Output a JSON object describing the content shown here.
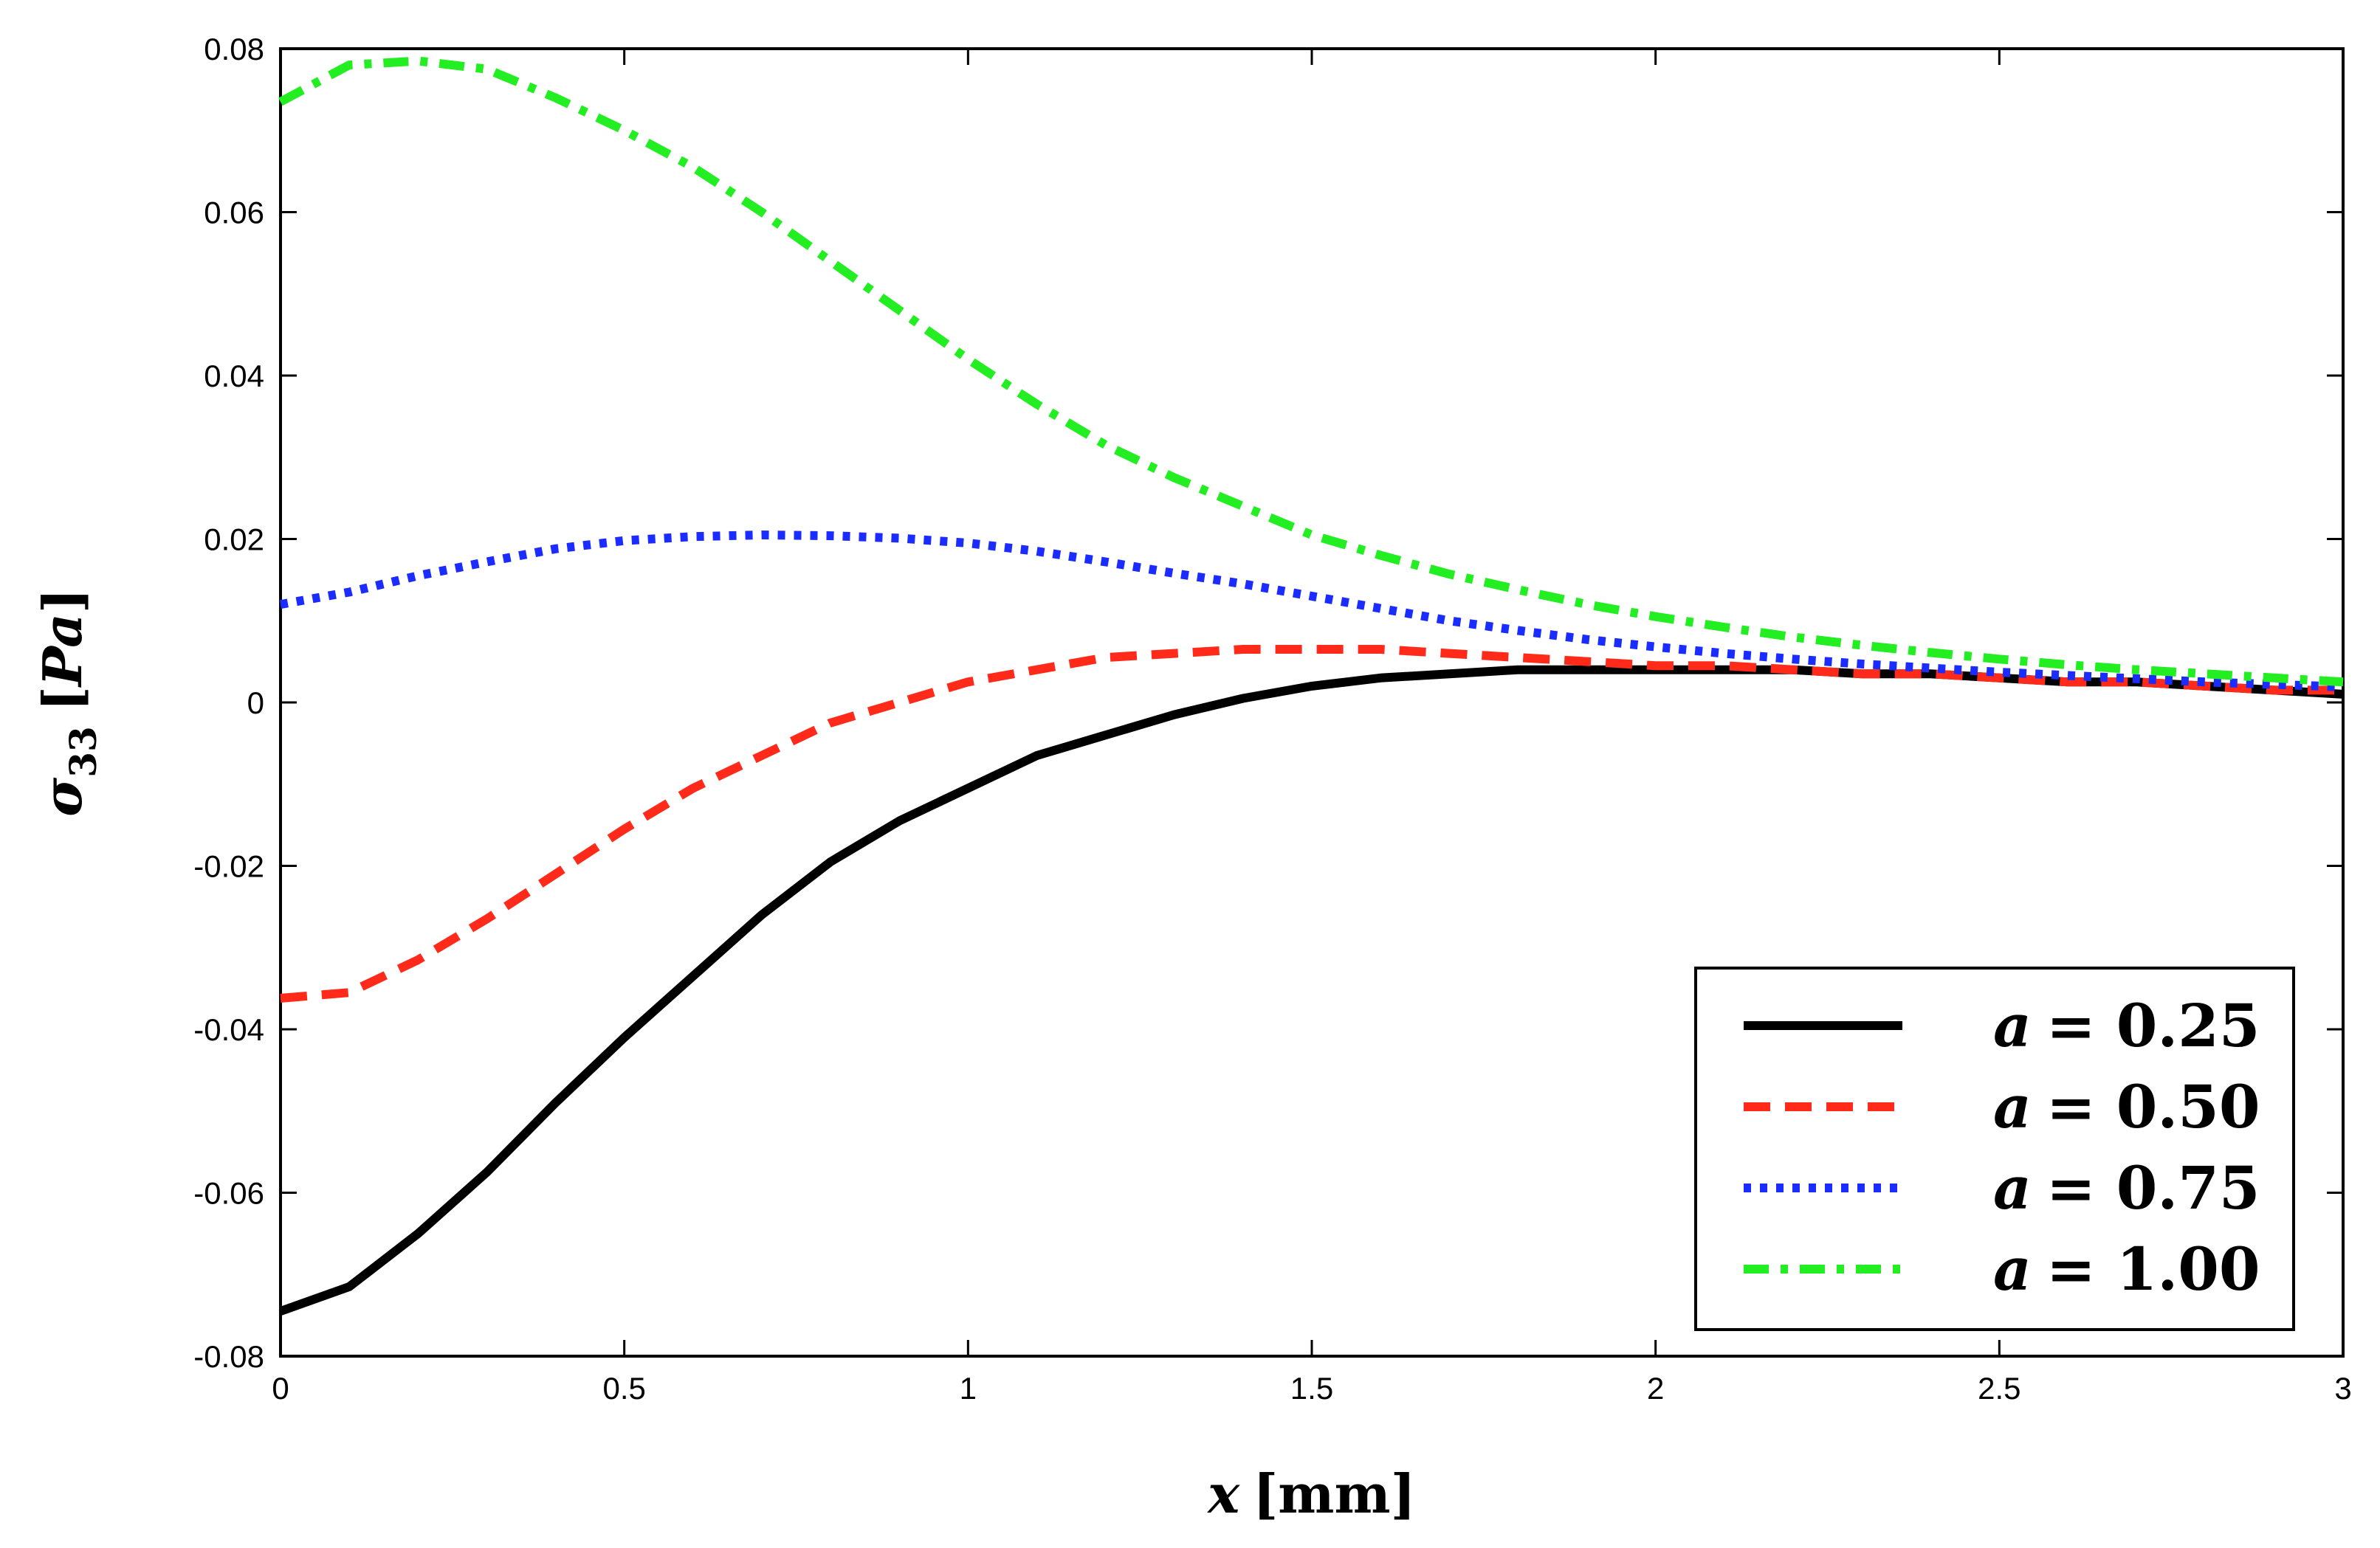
{
  "chart_data": {
    "type": "line",
    "title": "",
    "xlabel": {
      "var": "x",
      "unit": "[mm]"
    },
    "ylabel": {
      "var": "σ",
      "sub": "33",
      "unit": "[Pa]"
    },
    "xlim": [
      0,
      3
    ],
    "ylim": [
      -0.08,
      0.08
    ],
    "x_ticks": [
      0,
      0.5,
      1,
      1.5,
      2,
      2.5,
      3
    ],
    "x_tick_labels": [
      "0",
      "0.5",
      "1",
      "1.5",
      "2",
      "2.5",
      "3"
    ],
    "y_ticks": [
      0.08,
      0.06,
      0.04,
      0.02,
      0,
      -0.02,
      -0.04,
      -0.06,
      -0.08
    ],
    "y_tick_labels": [
      "0.08",
      "0.06",
      "0.04",
      "0.02",
      "0",
      "-0.02",
      "-0.04",
      "-0.06",
      "-0.08"
    ],
    "grid": false,
    "legend_position": "bottom-right",
    "x": [
      0,
      0.1,
      0.2,
      0.3,
      0.4,
      0.5,
      0.6,
      0.7,
      0.8,
      0.9,
      1.0,
      1.1,
      1.2,
      1.3,
      1.4,
      1.5,
      1.6,
      1.7,
      1.8,
      1.9,
      2.0,
      2.1,
      2.2,
      2.3,
      2.4,
      2.5,
      2.6,
      2.7,
      2.8,
      2.9,
      3.0
    ],
    "series": [
      {
        "name": "a = 0.25",
        "var": "a",
        "eq": "= 0.25",
        "color": "#000000",
        "style": "solid",
        "values": [
          -0.0745,
          -0.0715,
          -0.065,
          -0.0575,
          -0.049,
          -0.041,
          -0.0335,
          -0.026,
          -0.0195,
          -0.0145,
          -0.0105,
          -0.0065,
          -0.004,
          -0.0015,
          0.0005,
          0.002,
          0.003,
          0.0035,
          0.004,
          0.004,
          0.004,
          0.004,
          0.004,
          0.0035,
          0.0035,
          0.003,
          0.0025,
          0.0025,
          0.002,
          0.0015,
          0.001
        ]
      },
      {
        "name": "a = 0.50",
        "var": "a",
        "eq": "= 0.50",
        "color": "#ff2a1a",
        "style": "dashed",
        "values": [
          -0.0362,
          -0.0355,
          -0.0315,
          -0.0265,
          -0.021,
          -0.0155,
          -0.0105,
          -0.0065,
          -0.0025,
          0.0,
          0.0025,
          0.004,
          0.0055,
          0.006,
          0.0065,
          0.0065,
          0.0065,
          0.006,
          0.0055,
          0.005,
          0.0045,
          0.0045,
          0.004,
          0.0035,
          0.0035,
          0.003,
          0.0025,
          0.0025,
          0.002,
          0.0015,
          0.0015
        ]
      },
      {
        "name": "a = 0.75",
        "var": "a",
        "eq": "= 0.75",
        "color": "#1a2cff",
        "style": "dotted",
        "values": [
          0.012,
          0.0135,
          0.0155,
          0.0172,
          0.0188,
          0.0198,
          0.0203,
          0.0205,
          0.0204,
          0.0201,
          0.0195,
          0.0185,
          0.0172,
          0.0158,
          0.0145,
          0.013,
          0.0115,
          0.01,
          0.0088,
          0.0077,
          0.0068,
          0.006,
          0.0053,
          0.0047,
          0.0042,
          0.0037,
          0.0033,
          0.0029,
          0.0025,
          0.0022,
          0.0019
        ]
      },
      {
        "name": "a = 1.00",
        "var": "a",
        "eq": "= 1.00",
        "color": "#22ee22",
        "style": "dashdot",
        "values": [
          0.0735,
          0.078,
          0.0785,
          0.0775,
          0.074,
          0.07,
          0.0655,
          0.06,
          0.054,
          0.048,
          0.042,
          0.0365,
          0.0315,
          0.0275,
          0.024,
          0.0205,
          0.018,
          0.0157,
          0.0138,
          0.012,
          0.0105,
          0.0092,
          0.008,
          0.007,
          0.0061,
          0.0053,
          0.0046,
          0.004,
          0.0035,
          0.003,
          0.0025
        ]
      }
    ]
  }
}
